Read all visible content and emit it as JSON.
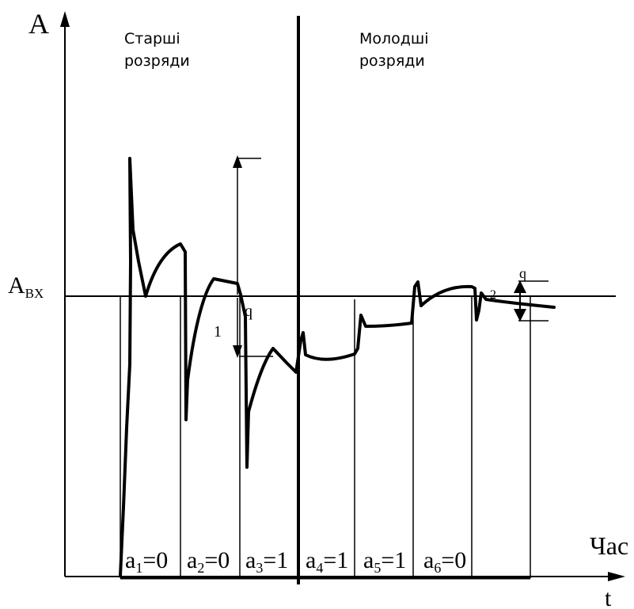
{
  "axes": {
    "y_label": "A",
    "input_level_main": "A",
    "input_level_sub": "BX",
    "x_label_time": "Час",
    "x_label_t": "t"
  },
  "regions": {
    "senior_line1": "Старші",
    "senior_line2": "розряди",
    "junior_line1": "Молодші",
    "junior_line2": "розряди"
  },
  "quantum": {
    "left_label": "q",
    "left_number": "1",
    "right_label": "q",
    "right_number": "2"
  },
  "bits": [
    {
      "name": "a",
      "index": "1",
      "value": "=0"
    },
    {
      "name": "a",
      "index": "2",
      "value": "=0"
    },
    {
      "name": "a",
      "index": "3",
      "value": "=1"
    },
    {
      "name": "a",
      "index": "4",
      "value": "=1"
    },
    {
      "name": "a",
      "index": "5",
      "value": "=1"
    },
    {
      "name": "a",
      "index": "6",
      "value": "=0"
    }
  ]
}
